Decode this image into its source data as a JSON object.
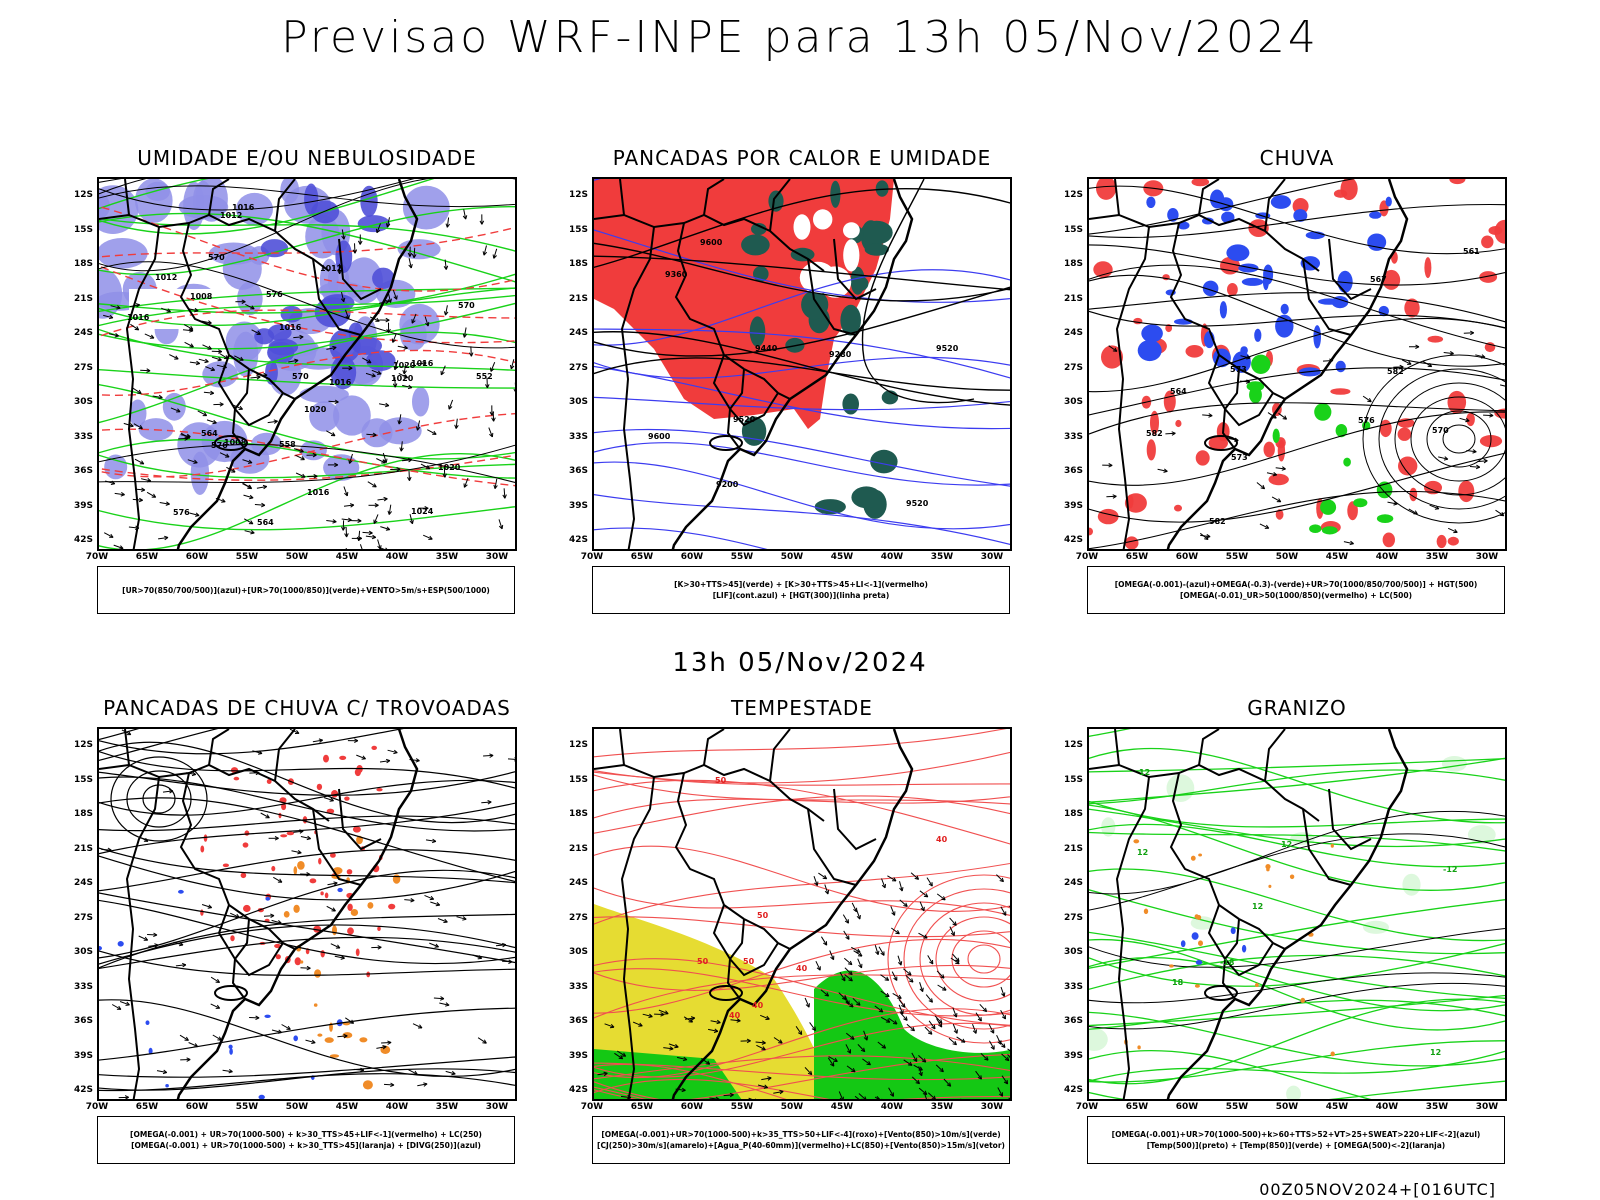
{
  "title": "Previsao WRF-INPE  para 13h 05/Nov/2024",
  "subtitle": "13h 05/Nov/2024",
  "footer": "00Z05NOV2024+[016UTC]",
  "lat_labels": [
    "12S",
    "15S",
    "18S",
    "21S",
    "24S",
    "27S",
    "30S",
    "33S",
    "36S",
    "39S",
    "42S"
  ],
  "lon_labels": [
    "70W",
    "65W",
    "60W",
    "55W",
    "50W",
    "45W",
    "40W",
    "35W",
    "30W"
  ],
  "colors": {
    "blue": "#8f8fe8",
    "darkblue": "#5050d8",
    "green": "#19d219",
    "red": "#f03c3c",
    "teal": "#1f5a50",
    "orange": "#f08c28",
    "yellow": "#e6dc32",
    "darkgreen": "#14c814"
  },
  "panels": [
    {
      "id": "umidade",
      "title": "UMIDADE E/OU NEBULOSIDADE",
      "legend": [
        "[UR>70(850/700/500)](azul)+[UR>70(1000/850)](verde)+VENTO>5m/s+ESP(500/1000)"
      ],
      "contour_labels": [
        "1008",
        "1012",
        "1016",
        "1012",
        "1008",
        "1012",
        "1016",
        "1016",
        "1020",
        "1020",
        "1016",
        "1020",
        "1024",
        "1016",
        "1020",
        "1016",
        "576",
        "570",
        "564",
        "558",
        "552",
        "576",
        "570",
        "564",
        "570",
        "576"
      ]
    },
    {
      "id": "pancadas",
      "title": "PANCADAS POR CALOR E UMIDADE",
      "legend": [
        "[K>30+TTS>45](verde) + [K>30+TTS>45+LI<-1](vermelho)",
        "[LIF](cont.azul) + [HGT(300)](linha preta)"
      ],
      "contour_labels": [
        "9600",
        "9520",
        "9440",
        "9520",
        "9600",
        "9360",
        "9280",
        "9200",
        "9520"
      ]
    },
    {
      "id": "chuva",
      "title": "CHUVA",
      "legend": [
        "[OMEGA(-0.001)-(azul)+OMEGA(-0.3)-(verde)+UR>70(1000/850/700/500)] + HGT(500)",
        "[OMEGA(-0.01)_UR>50(1000/850)(vermelho) + LC(500)"
      ],
      "contour_labels": [
        "582",
        "576",
        "573",
        "573",
        "570",
        "567",
        "564",
        "561",
        "582",
        "582"
      ]
    },
    {
      "id": "trovoadas",
      "title": "PANCADAS DE CHUVA C/ TROVOADAS",
      "legend": [
        "[OMEGA(-0.001) + UR>70(1000-500) + k>30_TTS>45+LIF<-1](vermelho) + LC(250)",
        "[OMEGA(-0.001) + UR>70(1000-500) + k>30_TTS>45](laranja) + [DIVG(250)](azul)"
      ],
      "contour_labels": []
    },
    {
      "id": "tempestade",
      "title": "TEMPESTADE",
      "legend": [
        "[OMEGA(-0.001)+UR>70(1000-500)+k>35_TTS>50+LIF<-4](roxo)+[Vento(850)>10m/s](verde)",
        "[CJ(250)>30m/s](amarelo)+[Agua_P(40-60mm)](vermelho)+LC(850)+[Vento(850)>15m/s](vetor)"
      ],
      "contour_labels": [
        "50",
        "50",
        "50",
        "50",
        "40",
        "40",
        "40",
        "40"
      ]
    },
    {
      "id": "granizo",
      "title": "GRANIZO",
      "legend": [
        "[OMEGA(-0.001)+UR>70(1000-500)+k>60+TTS>52+VT>25+SWEAT>220+LIF<-2](azul)",
        "[Temp(500)](preto) + [Temp(850)](verde) + [OMEGA(500)<-2](laranja)"
      ],
      "contour_labels": [
        "12",
        "12",
        "18",
        "-12",
        "-18",
        "12",
        "12",
        "12"
      ]
    }
  ]
}
